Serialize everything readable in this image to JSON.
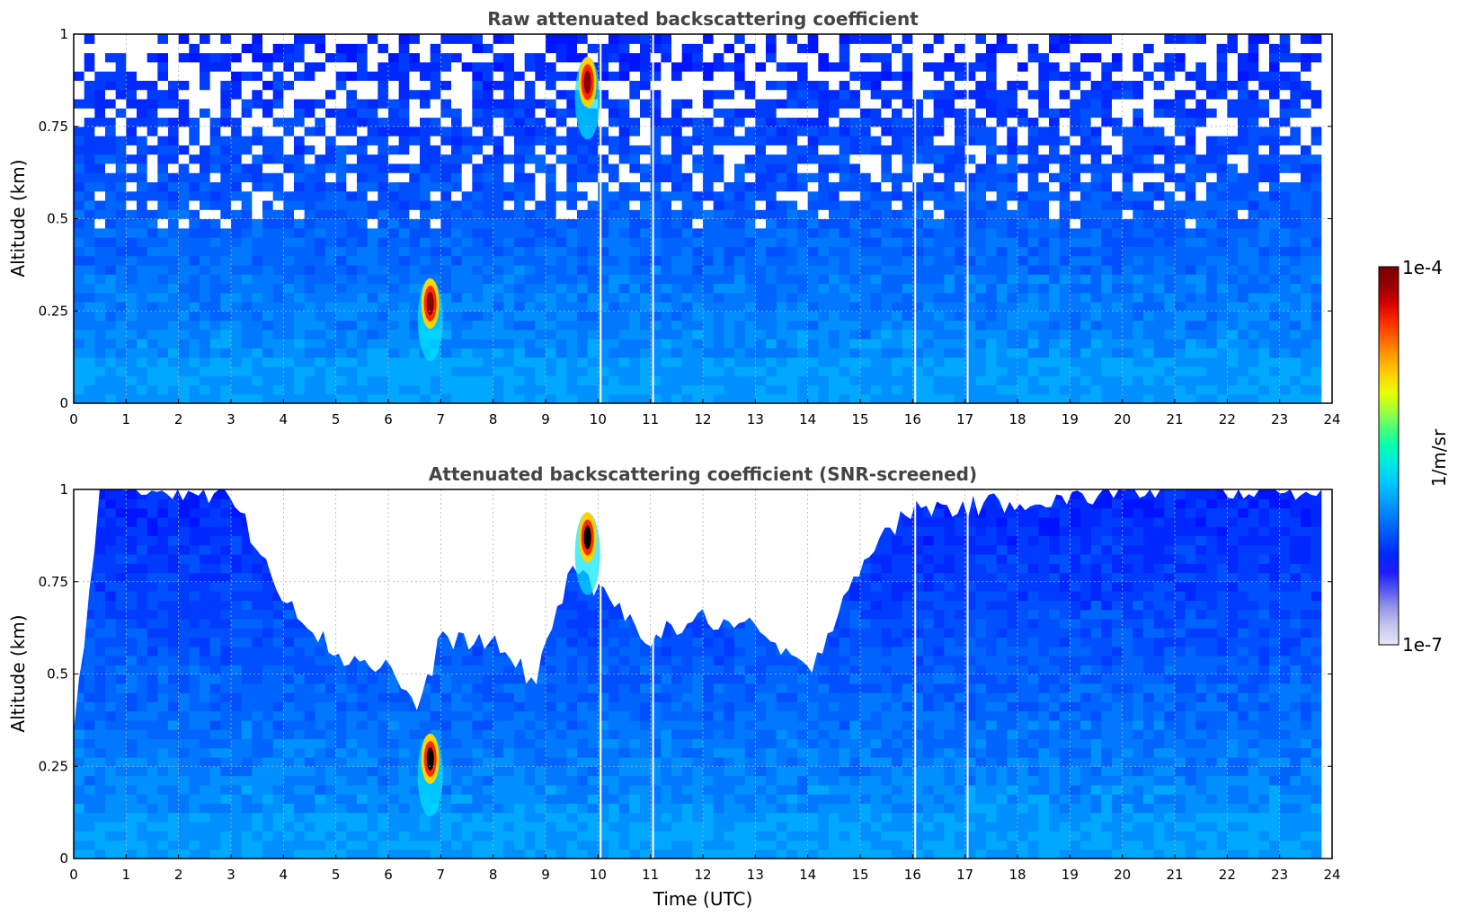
{
  "chart_data": [
    {
      "type": "heatmap",
      "title": "Raw attenuated backscattering coefficient",
      "xlabel": "",
      "ylabel": "Altitude (km)",
      "xlim": [
        0,
        24
      ],
      "ylim": [
        0,
        1
      ],
      "xticks": [
        "0",
        "1",
        "2",
        "3",
        "4",
        "5",
        "6",
        "7",
        "8",
        "9",
        "10",
        "11",
        "12",
        "13",
        "14",
        "15",
        "16",
        "17",
        "18",
        "19",
        "20",
        "21",
        "22",
        "23",
        "24"
      ],
      "yticks": [
        "0",
        "0.25",
        "0.5",
        "0.75",
        "1"
      ],
      "grid": true,
      "data_end_time": 23.8,
      "gap_times": [
        10.05,
        11.05,
        16.05,
        17.05
      ],
      "features": [
        {
          "time": 6.8,
          "altitude": 0.27,
          "intensity": "high"
        },
        {
          "time": 9.8,
          "altitude": 0.87,
          "intensity": "high"
        }
      ]
    },
    {
      "type": "heatmap",
      "title": "Attenuated backscattering coefficient (SNR-screened)",
      "xlabel": "Time (UTC)",
      "ylabel": "Altitude (km)",
      "xlim": [
        0,
        24
      ],
      "ylim": [
        0,
        1
      ],
      "xticks": [
        "0",
        "1",
        "2",
        "3",
        "4",
        "5",
        "6",
        "7",
        "8",
        "9",
        "10",
        "11",
        "12",
        "13",
        "14",
        "15",
        "16",
        "17",
        "18",
        "19",
        "20",
        "21",
        "22",
        "23",
        "24"
      ],
      "yticks": [
        "0",
        "0.25",
        "0.5",
        "0.75",
        "1"
      ],
      "grid": true,
      "data_end_time": 23.8,
      "gap_times": [
        10.05,
        11.05,
        16.05,
        17.05
      ],
      "screened_boundary": {
        "time": [
          0,
          0.2,
          0.5,
          1,
          2,
          3,
          4,
          5,
          6,
          6.6,
          7,
          8,
          8.8,
          9.5,
          10,
          11,
          12,
          13,
          14,
          15,
          16,
          17,
          18,
          19,
          20,
          21,
          22,
          23,
          23.8
        ],
        "altitude": [
          0.35,
          0.6,
          1.0,
          1.0,
          1.0,
          0.98,
          0.72,
          0.55,
          0.52,
          0.4,
          0.6,
          0.58,
          0.48,
          0.8,
          0.72,
          0.6,
          0.65,
          0.62,
          0.5,
          0.8,
          0.95,
          0.95,
          0.97,
          0.97,
          1.0,
          1.0,
          1.0,
          1.0,
          1.0
        ]
      },
      "features": [
        {
          "time": 6.8,
          "altitude": 0.27,
          "intensity": "saturated"
        },
        {
          "time": 9.8,
          "altitude": 0.87,
          "intensity": "saturated"
        }
      ]
    }
  ],
  "colorbar": {
    "label": "1/m/sr",
    "max_label": "1e-4",
    "min_label": "1e-7",
    "colors": [
      "#e6e6f7",
      "#c8c8ee",
      "#9a9ae6",
      "#5a5af0",
      "#1e1eff",
      "#0028ff",
      "#0050ff",
      "#0078ff",
      "#00a0ff",
      "#00c8ff",
      "#00e6e6",
      "#00ffb4",
      "#46ff78",
      "#a0ff3c",
      "#e6ff00",
      "#ffd200",
      "#ffa000",
      "#ff6400",
      "#ff2800",
      "#d20000",
      "#960000",
      "#780000"
    ]
  }
}
